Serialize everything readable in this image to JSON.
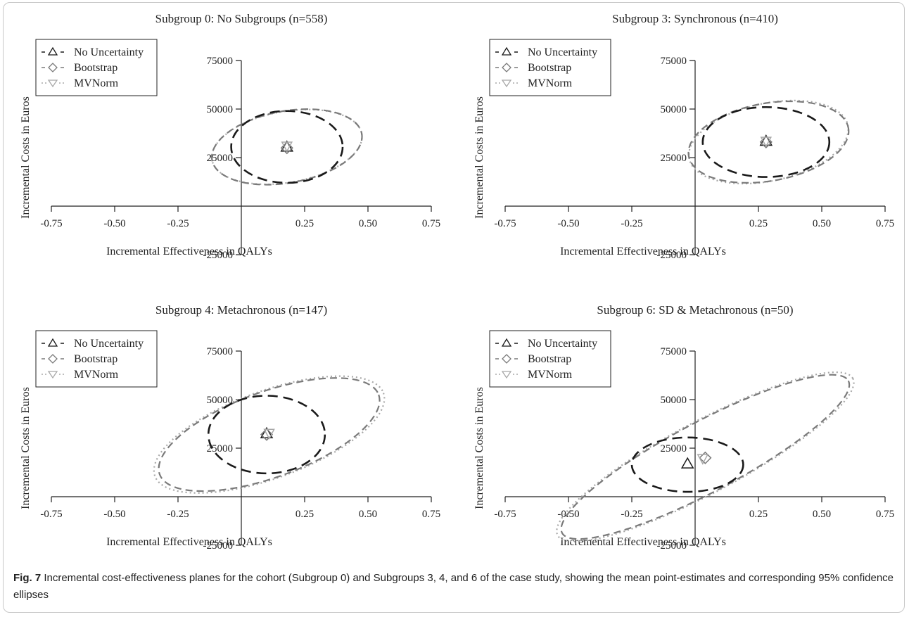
{
  "caption": {
    "label": "Fig. 7",
    "text": " Incremental cost-effectiveness planes for the cohort (Subgroup 0) and Subgroups 3, 4, and 6 of the case study, showing the mean point-estimates and corresponding 95% confidence ellipses"
  },
  "legend": {
    "entries": [
      {
        "label": "No Uncertainty",
        "marker": "triangle-up",
        "color": "#222222",
        "dash": "long"
      },
      {
        "label": "Bootstrap",
        "marker": "diamond",
        "color": "#7a7a7a",
        "dash": "medium"
      },
      {
        "label": "MVNorm",
        "marker": "triangle-down",
        "color": "#aaaaaa",
        "dash": "dotted"
      }
    ]
  },
  "chart_data": [
    {
      "type": "scatter",
      "title": "Subgroup 0: No Subgroups (n=558)",
      "xlabel": "Incremental Effectiveness in QALYs",
      "ylabel": "Incremental Costs in Euros",
      "xlim": [
        -0.8,
        0.8
      ],
      "ylim": [
        -25000,
        75000
      ],
      "xticks": [
        "-0.75",
        "-0.50",
        "-0.25",
        "0.25",
        "0.50",
        "0.75"
      ],
      "yticks": [
        "75000",
        "50000",
        "25000",
        "-25000"
      ],
      "series": [
        {
          "name": "No Uncertainty",
          "point": [
            0.18,
            30500
          ],
          "ellipse": {
            "center": [
              0.18,
              30500
            ],
            "rx": 0.22,
            "ry": 18500,
            "angle_deg": 0
          }
        },
        {
          "name": "Bootstrap",
          "point": [
            0.18,
            30000
          ],
          "ellipse": {
            "center": [
              0.18,
              30500
            ],
            "rx": 0.3,
            "ry": 18500,
            "angle_deg": 10
          }
        },
        {
          "name": "MVNorm",
          "point": [
            0.18,
            30800
          ],
          "ellipse": {
            "center": [
              0.18,
              30500
            ],
            "rx": 0.3,
            "ry": 18300,
            "angle_deg": 10
          }
        }
      ]
    },
    {
      "type": "scatter",
      "title": "Subgroup 3: Synchronous (n=410)",
      "xlabel": "Incremental Effectiveness in QALYs",
      "ylabel": "Incremental Costs in Euros",
      "xlim": [
        -0.8,
        0.8
      ],
      "ylim": [
        -25000,
        75000
      ],
      "xticks": [
        "-0.75",
        "-0.50",
        "-0.25",
        "0.25",
        "0.50",
        "0.75"
      ],
      "yticks": [
        "75000",
        "50000",
        "25000",
        "-25000"
      ],
      "series": [
        {
          "name": "No Uncertainty",
          "point": [
            0.28,
            33500
          ],
          "ellipse": {
            "center": [
              0.28,
              33000
            ],
            "rx": 0.25,
            "ry": 18000,
            "angle_deg": 0
          }
        },
        {
          "name": "Bootstrap",
          "point": [
            0.28,
            33000
          ],
          "ellipse": {
            "center": [
              0.29,
              33000
            ],
            "rx": 0.32,
            "ry": 20000,
            "angle_deg": 10
          }
        },
        {
          "name": "MVNorm",
          "point": [
            0.28,
            33300
          ],
          "ellipse": {
            "center": [
              0.29,
              33000
            ],
            "rx": 0.32,
            "ry": 20000,
            "angle_deg": 12
          }
        }
      ]
    },
    {
      "type": "scatter",
      "title": "Subgroup 4: Metachronous (n=147)",
      "xlabel": "Incremental Effectiveness in QALYs",
      "ylabel": "Incremental Costs in Euros",
      "xlim": [
        -0.8,
        0.8
      ],
      "ylim": [
        -25000,
        75000
      ],
      "xticks": [
        "-0.75",
        "-0.50",
        "-0.25",
        "0.25",
        "0.50",
        "0.75"
      ],
      "yticks": [
        "75000",
        "50000",
        "25000",
        "-25000"
      ],
      "series": [
        {
          "name": "No Uncertainty",
          "point": [
            0.1,
            32500
          ],
          "ellipse": {
            "center": [
              0.1,
              32000
            ],
            "rx": 0.23,
            "ry": 20000,
            "angle_deg": 0
          }
        },
        {
          "name": "Bootstrap",
          "point": [
            0.1,
            32000
          ],
          "ellipse": {
            "center": [
              0.11,
              32000
            ],
            "rx": 0.46,
            "ry": 22000,
            "angle_deg": 20
          }
        },
        {
          "name": "MVNorm",
          "point": [
            0.11,
            32500
          ],
          "ellipse": {
            "center": [
              0.11,
              32000
            ],
            "rx": 0.48,
            "ry": 22500,
            "angle_deg": 20
          }
        }
      ]
    },
    {
      "type": "scatter",
      "title": "Subgroup 6: SD & Metachronous (n=50)",
      "xlabel": "Incremental Effectiveness in QALYs",
      "ylabel": "Incremental Costs in Euros",
      "xlim": [
        -0.8,
        0.8
      ],
      "ylim": [
        -25000,
        75000
      ],
      "xticks": [
        "-0.75",
        "-0.50",
        "-0.25",
        "0.25",
        "0.50",
        "0.75"
      ],
      "yticks": [
        "75000",
        "50000",
        "25000",
        "-25000"
      ],
      "series": [
        {
          "name": "No Uncertainty",
          "point": [
            -0.03,
            17000
          ],
          "ellipse": {
            "center": [
              -0.03,
              16500
            ],
            "rx": 0.22,
            "ry": 14000,
            "angle_deg": 0
          }
        },
        {
          "name": "Bootstrap",
          "point": [
            0.04,
            20000
          ],
          "ellipse": {
            "center": [
              0.04,
              20500
            ],
            "rx": 0.64,
            "ry": 18000,
            "angle_deg": 28
          }
        },
        {
          "name": "MVNorm",
          "point": [
            0.03,
            19500
          ],
          "ellipse": {
            "center": [
              0.04,
              20500
            ],
            "rx": 0.66,
            "ry": 18500,
            "angle_deg": 28
          }
        }
      ]
    }
  ]
}
